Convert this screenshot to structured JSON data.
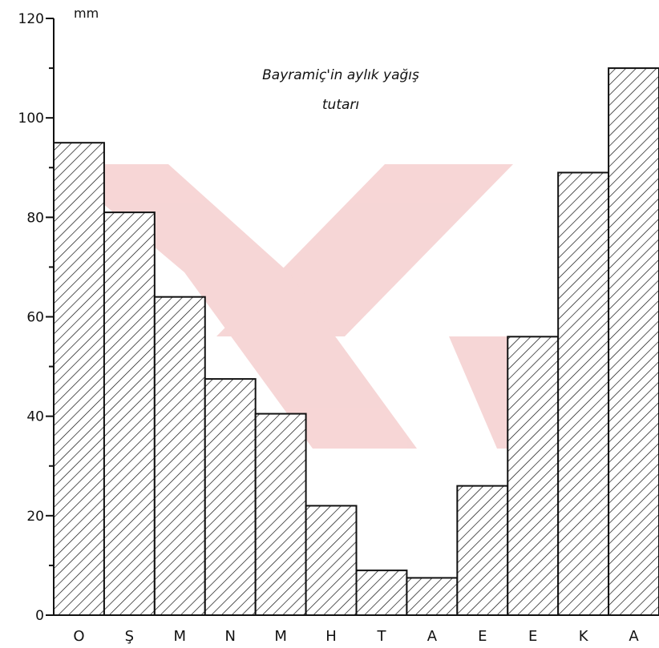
{
  "chart_data": {
    "type": "bar",
    "title": "Bayramiç'in aylık yağış",
    "subtitle": "tutarı",
    "ylabel": "mm",
    "xlabel": "",
    "categories": [
      "O",
      "Ş",
      "M",
      "N",
      "M",
      "H",
      "T",
      "A",
      "E",
      "E",
      "K",
      "A"
    ],
    "values": [
      95,
      81,
      64,
      47.5,
      40.5,
      22,
      9,
      7.5,
      26,
      56,
      89,
      110
    ],
    "ylim": [
      0,
      120
    ],
    "yticks": [
      0,
      20,
      40,
      60,
      80,
      100,
      120
    ],
    "ytick_labels": [
      "0",
      "20",
      "40",
      "60",
      "80",
      "100",
      "120"
    ],
    "grid": false,
    "bar_fill": "diagonal-hatch",
    "colors": {
      "ink": "#111111",
      "watermark": "#f3c7c7"
    }
  }
}
